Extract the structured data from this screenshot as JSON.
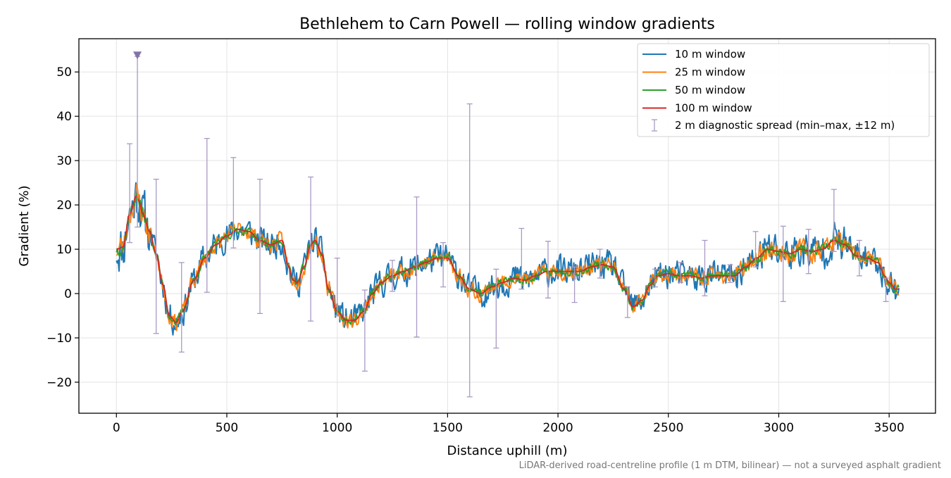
{
  "figure": {
    "footnote": "LiDAR-derived road-centreline profile (1 m DTM, bilinear) — not a surveyed asphalt gradient"
  },
  "chart_data": {
    "type": "line",
    "title": "Bethlehem to Carn Powell — rolling window gradients",
    "xlabel": "Distance uphill (m)",
    "ylabel": "Gradient (%)",
    "xlim": [
      -170,
      3710
    ],
    "ylim": [
      -27,
      57.5
    ],
    "xticks": [
      0,
      500,
      1000,
      1500,
      2000,
      2500,
      3000,
      3500
    ],
    "xtick_labels": [
      "0",
      "500",
      "1000",
      "1500",
      "2000",
      "2500",
      "3000",
      "3500"
    ],
    "yticks": [
      -20,
      -10,
      0,
      10,
      20,
      30,
      40,
      50
    ],
    "ytick_labels": [
      "−20",
      "−10",
      "0",
      "10",
      "20",
      "30",
      "40",
      "50"
    ],
    "grid": true,
    "legend_position": "top-right",
    "x_end": 3545,
    "baseline_profile": {
      "x": [
        0,
        30,
        60,
        90,
        100,
        120,
        150,
        180,
        210,
        240,
        270,
        300,
        350,
        400,
        450,
        500,
        550,
        600,
        650,
        700,
        750,
        780,
        800,
        820,
        850,
        880,
        900,
        930,
        960,
        1000,
        1040,
        1080,
        1120,
        1160,
        1200,
        1250,
        1300,
        1350,
        1400,
        1450,
        1500,
        1550,
        1600,
        1650,
        1700,
        1750,
        1800,
        1850,
        1900,
        1950,
        2000,
        2050,
        2100,
        2150,
        2200,
        2250,
        2300,
        2340,
        2380,
        2420,
        2450,
        2500,
        2550,
        2600,
        2650,
        2700,
        2750,
        2800,
        2850,
        2900,
        2950,
        3000,
        3050,
        3100,
        3150,
        3200,
        3250,
        3300,
        3350,
        3400,
        3450,
        3480,
        3500,
        3530,
        3545
      ],
      "y": [
        10,
        10.5,
        18,
        22,
        21,
        18,
        14,
        9,
        2,
        -5,
        -6.5,
        -4,
        3,
        8,
        11,
        13,
        14.5,
        14,
        12,
        11,
        12,
        6,
        3,
        2.5,
        6,
        11,
        12,
        9,
        1,
        -4,
        -6,
        -6,
        -4,
        0,
        2.5,
        4,
        5,
        6,
        7,
        8,
        8,
        4,
        1,
        0,
        1.5,
        2.5,
        3.5,
        3,
        4,
        5,
        5,
        5,
        5,
        6,
        6.5,
        6,
        1,
        -3,
        -1.5,
        2,
        4,
        4.5,
        4,
        4,
        3.5,
        4,
        4,
        4,
        6,
        8,
        10,
        9.5,
        9,
        10,
        9.5,
        10,
        12,
        11,
        8.5,
        8,
        7,
        4,
        2.5,
        1,
        1
      ]
    },
    "series": [
      {
        "name": "10 m window",
        "color": "#1f77b4",
        "noise": 3.2,
        "seed": 11
      },
      {
        "name": "25 m window",
        "color": "#ff7f0e",
        "noise": 1.8,
        "seed": 23
      },
      {
        "name": "50 m window",
        "color": "#2ca02c",
        "noise": 0.9,
        "seed": 37
      },
      {
        "name": "100 m window",
        "color": "#d62728",
        "noise": 0.0,
        "seed": 41
      }
    ],
    "diagnostic": {
      "name": "2 m diagnostic spread (min–max, ±12 m)",
      "color": "#a99ac4",
      "bars": [
        {
          "x": 60,
          "min": 11.5,
          "max": 33.8
        },
        {
          "x": 95,
          "min": 15,
          "max": 53.5
        },
        {
          "x": 180,
          "min": -9,
          "max": 25.8
        },
        {
          "x": 295,
          "min": -13.2,
          "max": 7
        },
        {
          "x": 410,
          "min": 0.3,
          "max": 35
        },
        {
          "x": 530,
          "min": 10.3,
          "max": 30.7
        },
        {
          "x": 650,
          "min": -4.5,
          "max": 25.8
        },
        {
          "x": 880,
          "min": -6.2,
          "max": 26.3
        },
        {
          "x": 1000,
          "min": -5,
          "max": 8
        },
        {
          "x": 1125,
          "min": -17.5,
          "max": 0.8
        },
        {
          "x": 1250,
          "min": 0.5,
          "max": 7.5
        },
        {
          "x": 1360,
          "min": -9.8,
          "max": 21.8
        },
        {
          "x": 1480,
          "min": 1.5,
          "max": 11.5
        },
        {
          "x": 1600,
          "min": -23.3,
          "max": 42.8
        },
        {
          "x": 1720,
          "min": -12.3,
          "max": 5.5
        },
        {
          "x": 1835,
          "min": 1,
          "max": 14.7
        },
        {
          "x": 1955,
          "min": -1,
          "max": 11.8
        },
        {
          "x": 2075,
          "min": -2,
          "max": 6
        },
        {
          "x": 2190,
          "min": 3.5,
          "max": 10
        },
        {
          "x": 2315,
          "min": -5.4,
          "max": 1.5
        },
        {
          "x": 2440,
          "min": 1.5,
          "max": 5.5
        },
        {
          "x": 2555,
          "min": 2.5,
          "max": 7
        },
        {
          "x": 2665,
          "min": -0.5,
          "max": 12
        },
        {
          "x": 2780,
          "min": 2.5,
          "max": 6.5
        },
        {
          "x": 2895,
          "min": 6,
          "max": 14
        },
        {
          "x": 3020,
          "min": -1.8,
          "max": 15.2
        },
        {
          "x": 3135,
          "min": 4.5,
          "max": 14.5
        },
        {
          "x": 3250,
          "min": 9.5,
          "max": 23.5
        },
        {
          "x": 3365,
          "min": 4,
          "max": 12
        },
        {
          "x": 3485,
          "min": -1.8,
          "max": 3.5
        }
      ]
    },
    "marker": {
      "x": 95,
      "y": 53.8,
      "color": "#8474a8"
    }
  }
}
